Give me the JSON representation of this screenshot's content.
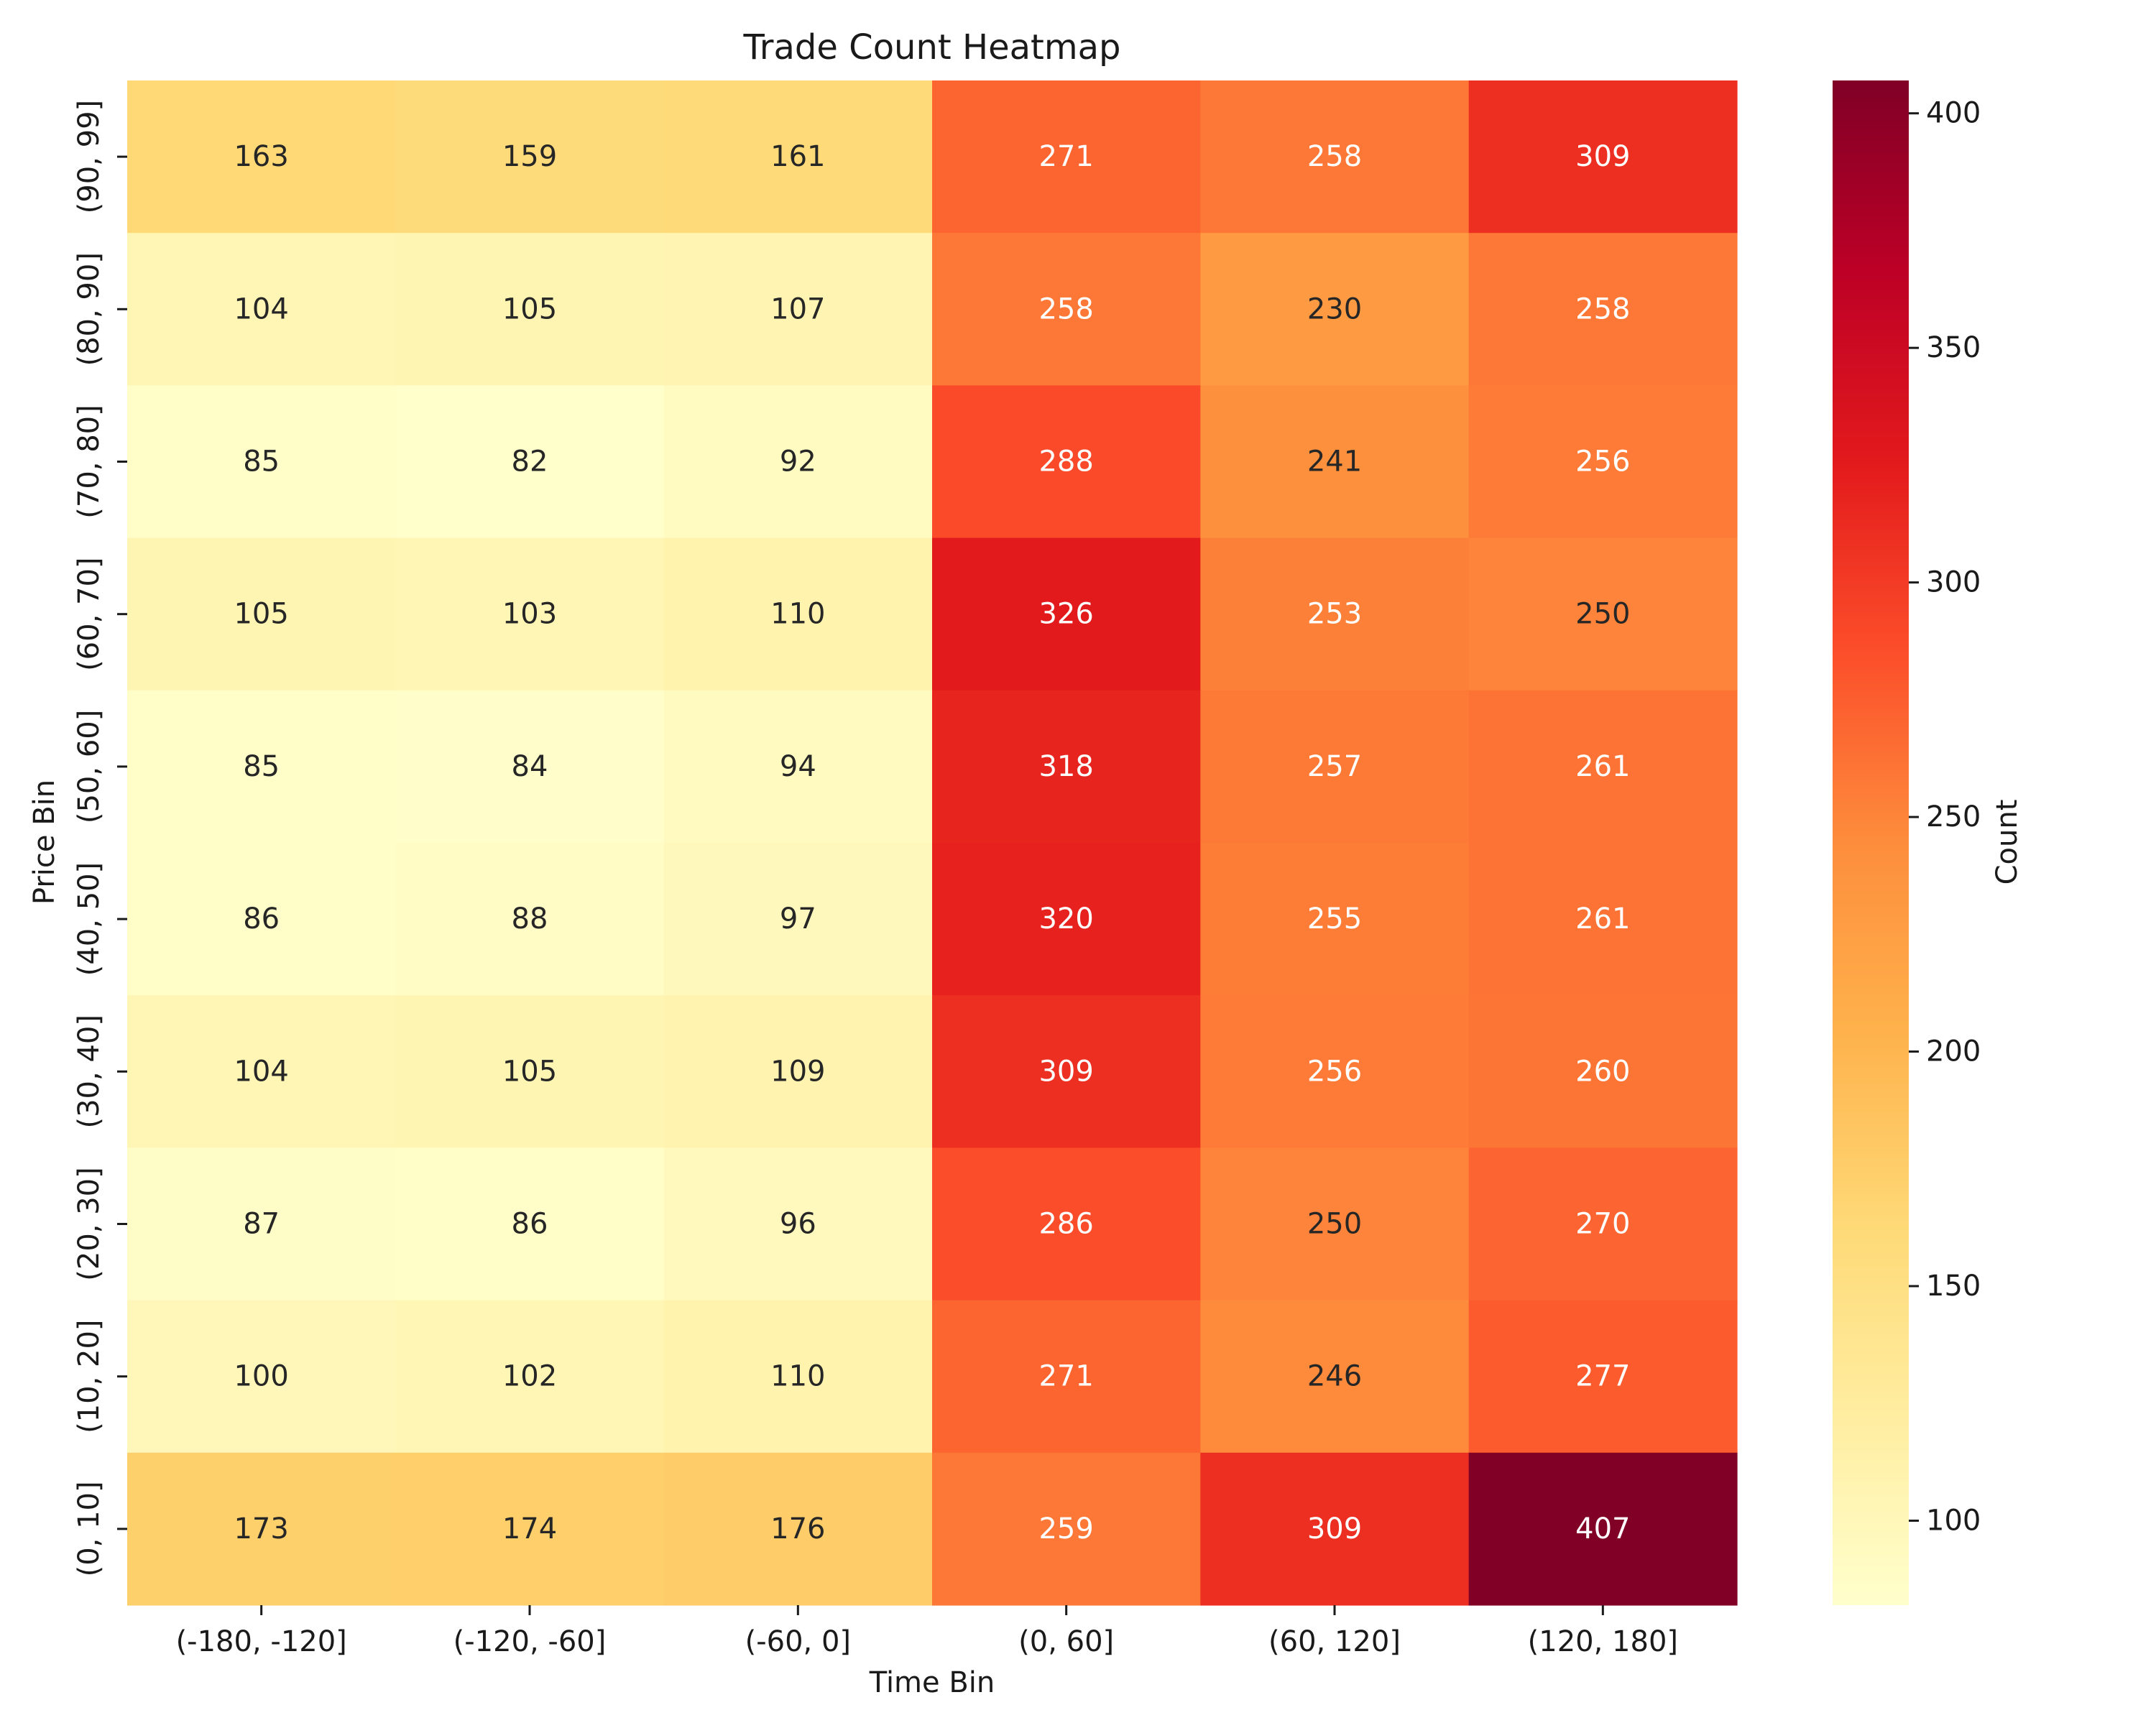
{
  "chart_data": {
    "type": "heatmap",
    "title": "Trade Count Heatmap",
    "xlabel": "Time Bin",
    "ylabel": "Price Bin",
    "x_categories": [
      "(-180, -120]",
      "(-120, -60]",
      "(-60, 0]",
      "(0, 60]",
      "(60, 120]",
      "(120, 180]"
    ],
    "y_categories": [
      "(90, 99]",
      "(80, 90]",
      "(70, 80]",
      "(60, 70]",
      "(50, 60]",
      "(40, 50]",
      "(30, 40]",
      "(20, 30]",
      "(10, 20]",
      "(0, 10]"
    ],
    "values": [
      [
        163,
        159,
        161,
        271,
        258,
        309
      ],
      [
        104,
        105,
        107,
        258,
        230,
        258
      ],
      [
        85,
        82,
        92,
        288,
        241,
        256
      ],
      [
        105,
        103,
        110,
        326,
        253,
        250
      ],
      [
        85,
        84,
        94,
        318,
        257,
        261
      ],
      [
        86,
        88,
        97,
        320,
        255,
        261
      ],
      [
        104,
        105,
        109,
        309,
        256,
        260
      ],
      [
        87,
        86,
        96,
        286,
        250,
        270
      ],
      [
        100,
        102,
        110,
        271,
        246,
        277
      ],
      [
        173,
        174,
        176,
        259,
        309,
        407
      ]
    ],
    "colormap": "YlOrRd",
    "colormap_stops": [
      "#ffffcc",
      "#ffeda0",
      "#fed976",
      "#feb24c",
      "#fd8d3c",
      "#fc4e2a",
      "#e31a1c",
      "#bd0026",
      "#800026"
    ],
    "vmin": 82,
    "vmax": 407,
    "annotated": true,
    "colorbar": {
      "label": "Count",
      "ticks": [
        100,
        150,
        200,
        250,
        300,
        350,
        400
      ]
    }
  }
}
